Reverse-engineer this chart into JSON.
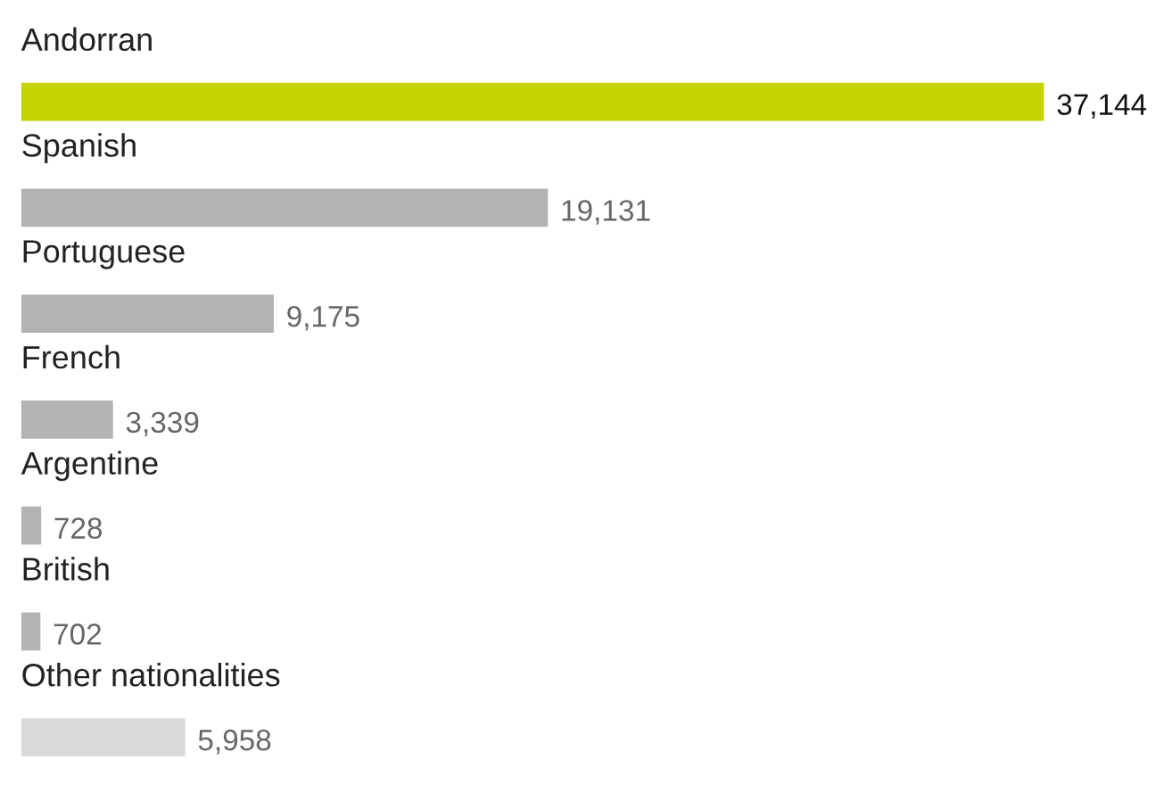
{
  "chart_data": {
    "type": "bar",
    "orientation": "horizontal",
    "value_labels": [
      "37,144",
      "19,131",
      "9,175",
      "3,339",
      "728",
      "702",
      "5,958"
    ],
    "categories": [
      "Andorran",
      "Spanish",
      "Portuguese",
      "French",
      "Argentine",
      "British",
      "Other nationalities"
    ],
    "values": [
      37144,
      19131,
      9175,
      3339,
      728,
      702,
      5958
    ],
    "colors": [
      "#c5d400",
      "#b3b3b3",
      "#b3b3b3",
      "#b3b3b3",
      "#b3b3b3",
      "#b3b3b3",
      "#d9d9d9"
    ]
  }
}
